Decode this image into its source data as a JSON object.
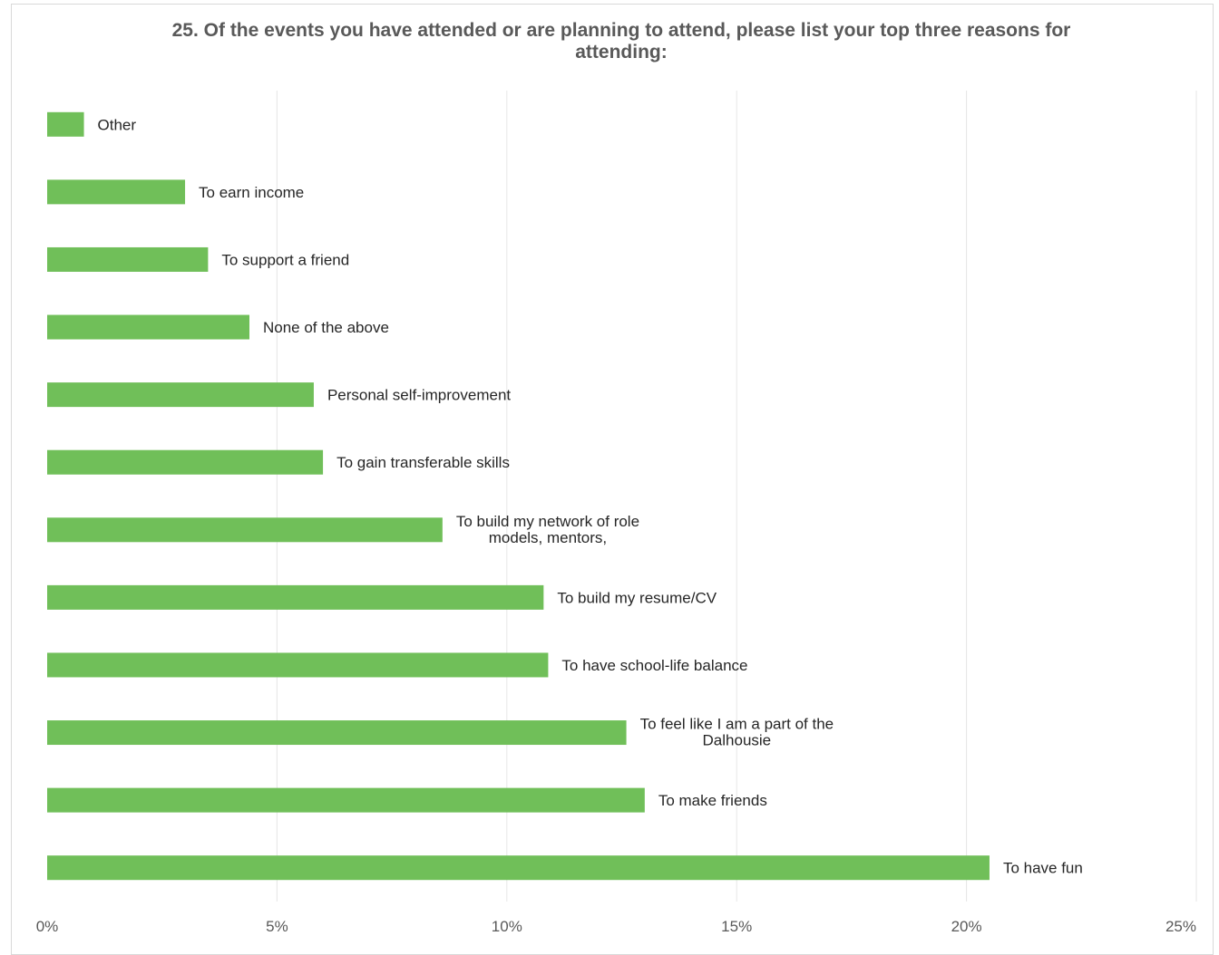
{
  "chart_data": {
    "type": "bar",
    "orientation": "horizontal",
    "title": "25. Of the events you have attended or are planning to attend, please list your top three reasons for attending:",
    "xlabel": "",
    "ylabel": "",
    "xlim": [
      0,
      25
    ],
    "x_unit": "%",
    "tick_labels": [
      "0%",
      "5%",
      "10%",
      "15%",
      "20%",
      "25%"
    ],
    "grid": true,
    "legend": "none",
    "bar_color": "#70bf59",
    "categories": [
      "Other",
      "To earn income",
      "To support a friend",
      "None of the above",
      "Personal self-improvement",
      "To gain transferable skills",
      "To build my network of role models, mentors,",
      "To build my resume/CV",
      "To have school-life balance",
      "To feel like I am a part of the Dalhousie",
      "To make friends",
      "To have fun"
    ],
    "label_lines": [
      [
        "Other"
      ],
      [
        "To earn income"
      ],
      [
        "To support a friend"
      ],
      [
        "None of the above"
      ],
      [
        "Personal self-improvement"
      ],
      [
        "To gain transferable skills"
      ],
      [
        "To build my network of role",
        "models, mentors,"
      ],
      [
        "To build my resume/CV"
      ],
      [
        "To have school-life balance"
      ],
      [
        "To feel like I am a part of the",
        "Dalhousie"
      ],
      [
        "To make friends"
      ],
      [
        "To have fun"
      ]
    ],
    "values": [
      0.8,
      3.0,
      3.5,
      4.4,
      5.8,
      6.0,
      8.6,
      10.8,
      10.9,
      12.6,
      13.0,
      20.5
    ]
  }
}
